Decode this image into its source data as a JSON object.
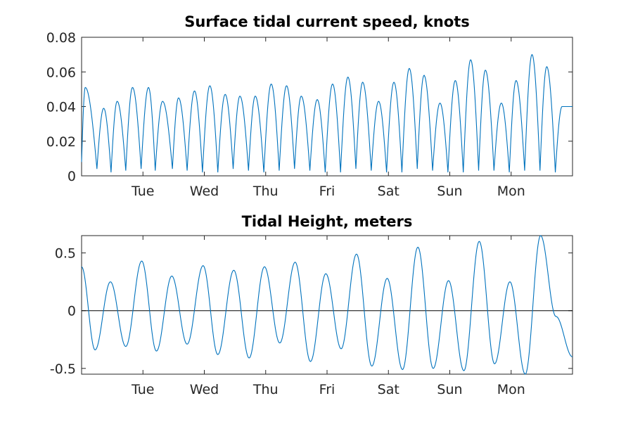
{
  "chart_data": [
    {
      "type": "line",
      "title": "Surface tidal current speed, knots",
      "xlabel": "",
      "ylabel": "",
      "xlim": [
        0,
        8
      ],
      "ylim": [
        0,
        0.08
      ],
      "x_tick_labels": [
        {
          "x": 1,
          "label": "Tue"
        },
        {
          "x": 2,
          "label": "Wed"
        },
        {
          "x": 3,
          "label": "Thu"
        },
        {
          "x": 4,
          "label": "Fri"
        },
        {
          "x": 5,
          "label": "Sat"
        },
        {
          "x": 6,
          "label": "Sun"
        },
        {
          "x": 7,
          "label": "Mon"
        }
      ],
      "y_ticks": [
        0,
        0.02,
        0.04,
        0.06,
        0.08
      ],
      "y_tick_labels": [
        "0",
        "0.02",
        "0.04",
        "0.06",
        "0.08"
      ],
      "grid": false,
      "series": [
        {
          "color": "#0072bd",
          "peak_days": [
            0.06,
            0.36,
            0.58,
            0.83,
            1.09,
            1.32,
            1.58,
            1.84,
            2.09,
            2.34,
            2.58,
            2.83,
            3.09,
            3.34,
            3.58,
            3.84,
            4.09,
            4.34,
            4.58,
            4.84,
            5.09,
            5.34,
            5.58,
            5.84,
            6.09,
            6.34,
            6.58,
            6.84,
            7.08,
            7.34,
            7.58,
            7.83
          ],
          "peak_values": [
            0.051,
            0.039,
            0.043,
            0.051,
            0.051,
            0.043,
            0.045,
            0.049,
            0.052,
            0.047,
            0.046,
            0.046,
            0.053,
            0.052,
            0.046,
            0.044,
            0.053,
            0.057,
            0.054,
            0.043,
            0.054,
            0.062,
            0.058,
            0.042,
            0.055,
            0.067,
            0.061,
            0.042,
            0.055,
            0.07,
            0.063,
            0.04
          ],
          "trough_days": [
            0.25,
            0.48,
            0.72,
            0.97,
            1.2,
            1.48,
            1.72,
            1.97,
            2.22,
            2.47,
            2.72,
            2.97,
            3.22,
            3.47,
            3.72,
            3.97,
            4.22,
            4.47,
            4.72,
            4.97,
            5.22,
            5.47,
            5.72,
            5.97,
            6.22,
            6.47,
            6.72,
            6.97,
            7.22,
            7.47,
            7.72
          ],
          "trough_values": [
            0.004,
            0.002,
            0.003,
            0.004,
            0.003,
            0.004,
            0.003,
            0.002,
            0.002,
            0.004,
            0.003,
            0.002,
            0.003,
            0.004,
            0.003,
            0.002,
            0.002,
            0.004,
            0.003,
            0.002,
            0.002,
            0.004,
            0.003,
            0.002,
            0.002,
            0.003,
            0.003,
            0.002,
            0.003,
            0.003,
            0.002
          ],
          "end_value": 0.04
        }
      ]
    },
    {
      "type": "line",
      "title": "Tidal Height, meters",
      "xlabel": "",
      "ylabel": "",
      "xlim": [
        0,
        8
      ],
      "ylim": [
        -0.55,
        0.65
      ],
      "x_tick_labels": [
        {
          "x": 1,
          "label": "Tue"
        },
        {
          "x": 2,
          "label": "Wed"
        },
        {
          "x": 3,
          "label": "Thu"
        },
        {
          "x": 4,
          "label": "Fri"
        },
        {
          "x": 5,
          "label": "Sat"
        },
        {
          "x": 6,
          "label": "Sun"
        },
        {
          "x": 7,
          "label": "Mon"
        }
      ],
      "y_ticks": [
        -0.5,
        0,
        0.5
      ],
      "y_tick_labels": [
        "-0.5",
        "0",
        "0.5"
      ],
      "zero_line": true,
      "grid": false,
      "series": [
        {
          "color": "#0072bd",
          "start_value": 0.38,
          "extrema_days": [
            0.22,
            0.47,
            0.72,
            0.98,
            1.22,
            1.47,
            1.72,
            1.98,
            2.22,
            2.48,
            2.73,
            2.98,
            3.23,
            3.48,
            3.73,
            3.98,
            4.23,
            4.48,
            4.73,
            4.98,
            5.23,
            5.48,
            5.73,
            5.98,
            6.23,
            6.48,
            6.73,
            6.98,
            7.23,
            7.48,
            7.73
          ],
          "extrema_values": [
            -0.34,
            0.25,
            -0.31,
            0.43,
            -0.35,
            0.3,
            -0.29,
            0.39,
            -0.38,
            0.35,
            -0.41,
            0.38,
            -0.28,
            0.42,
            -0.44,
            0.32,
            -0.33,
            0.49,
            -0.48,
            0.28,
            -0.51,
            0.55,
            -0.5,
            0.26,
            -0.52,
            0.6,
            -0.46,
            0.25,
            -0.55,
            0.65,
            -0.05
          ],
          "end_value": -0.4
        }
      ]
    }
  ]
}
